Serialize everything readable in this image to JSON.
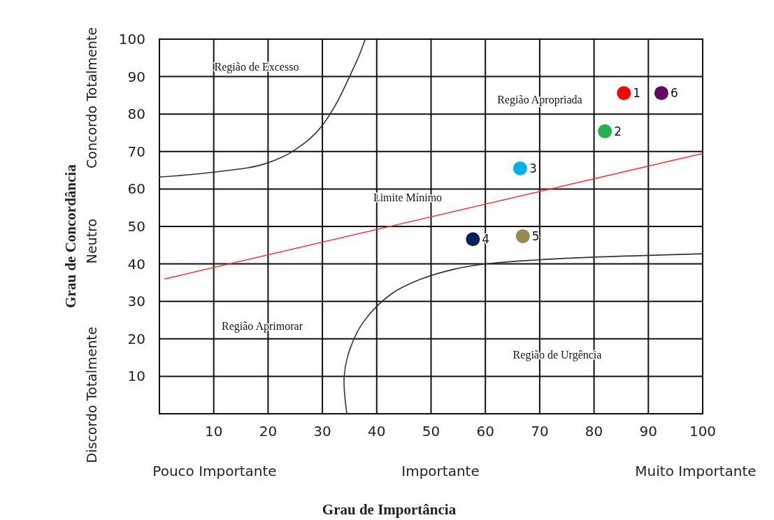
{
  "chart_data": {
    "type": "scatter",
    "xlabel": "Grau de Importância",
    "ylabel": "Grau de Concordância",
    "xlim": [
      0,
      100
    ],
    "ylim": [
      0,
      100
    ],
    "xticks": [
      10,
      20,
      30,
      40,
      50,
      60,
      70,
      80,
      90,
      100
    ],
    "yticks": [
      10,
      20,
      30,
      40,
      50,
      60,
      70,
      80,
      90,
      100
    ],
    "grid": true,
    "marker": "circle",
    "annotations": [
      "Região de Excesso",
      "Região Apropriada",
      "Limite Mínimo",
      "Região Aprimorar",
      "Região de Urgência",
      "Pouco Importante",
      "Importante",
      "Muito Importante",
      "Discordo Totalmente",
      "Neutro",
      "Concordo Totalmente"
    ],
    "series": [
      {
        "type": "line",
        "marker": "none",
        "color": "#333333",
        "x": [
          0,
          10,
          20,
          25,
          30,
          33,
          35,
          37,
          37.9
        ],
        "values": [
          63.2,
          64.5,
          67,
          70.5,
          77,
          84,
          90,
          96.5,
          100
        ]
      },
      {
        "type": "line",
        "marker": "none",
        "color": "#333333",
        "x": [
          34.5,
          34,
          35,
          37.6,
          42.7,
          47.9,
          54.3,
          60.7,
          73.6,
          100
        ],
        "values": [
          0,
          9.7,
          17,
          24.6,
          32,
          35.8,
          38.6,
          40.1,
          41.4,
          42.7
        ]
      },
      {
        "type": "line",
        "marker": "none",
        "color": "#ff3333",
        "x": [
          1,
          100
        ],
        "values": [
          36,
          69.5
        ]
      },
      {
        "name": "1",
        "color": "#ff0000",
        "x": [
          85.5
        ],
        "values": [
          85.6
        ]
      },
      {
        "name": "2",
        "color": "#22b14c",
        "x": [
          82
        ],
        "values": [
          75.4
        ]
      },
      {
        "name": "3",
        "color": "#00b0f0",
        "x": [
          66.4
        ],
        "values": [
          65.5
        ]
      },
      {
        "name": "4",
        "color": "#002060",
        "x": [
          57.7
        ],
        "values": [
          46.6
        ]
      },
      {
        "name": "5",
        "color": "#948a54",
        "x": [
          66.9
        ],
        "values": [
          47.4
        ]
      },
      {
        "name": "6",
        "color": "#660066",
        "x": [
          92.4
        ],
        "values": [
          85.6
        ]
      }
    ]
  }
}
